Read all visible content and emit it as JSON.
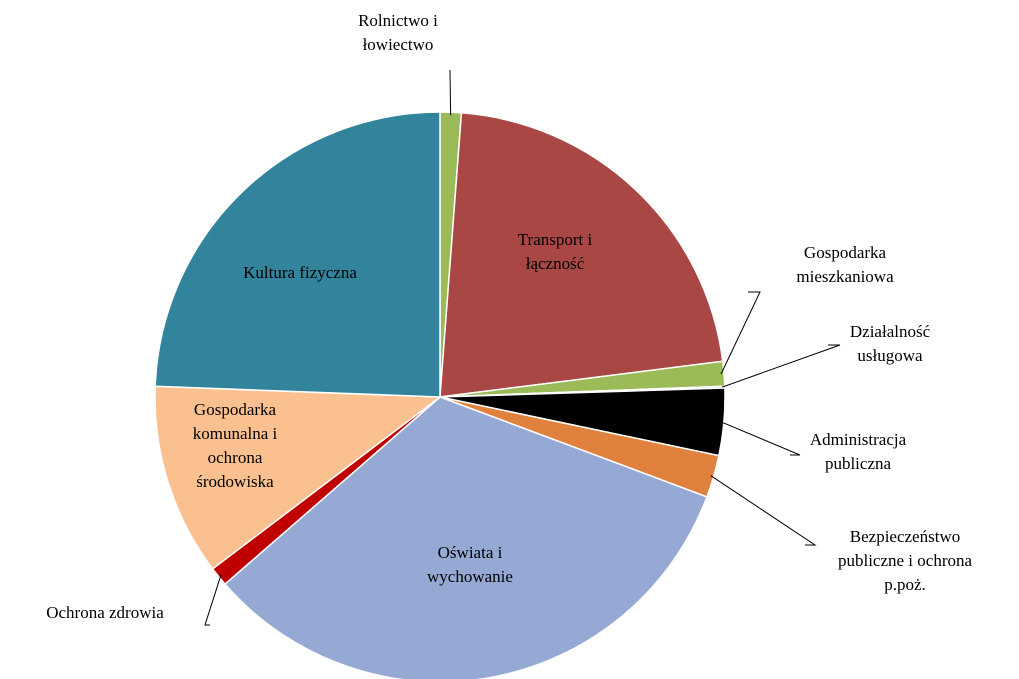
{
  "chart_data": {
    "type": "pie",
    "categories": [
      "Rolnictwo i łowiectwo",
      "Transport i łączność",
      "Gospodarka mieszkaniowa",
      "Działalność usługowa",
      "Administracja publiczna",
      "Bezpieczeństwo publiczne i ochrona p.poż.",
      "Oświata i wychowanie",
      "Ochrona zdrowia",
      "Gospodarka komunalna i ochrona środowiska",
      "Kultura fizyczna"
    ],
    "values": [
      1.2,
      21.8,
      1.4,
      0.1,
      3.8,
      2.4,
      32.9,
      1.1,
      10.9,
      24.4
    ],
    "colors": [
      "#9bbb59",
      "#a94744",
      "#9bbb59",
      "#4bacc6",
      "#000000",
      "#e0813d",
      "#95a9d4",
      "#c00000",
      "#fac090",
      "#31849b"
    ]
  }
}
